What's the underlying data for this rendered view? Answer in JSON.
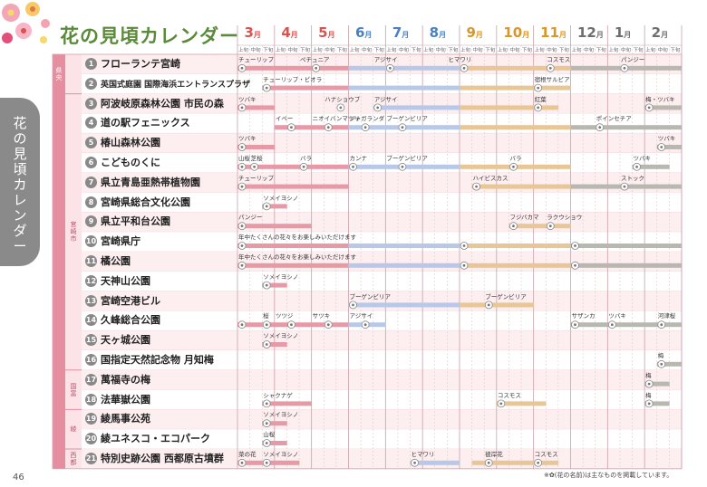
{
  "page": {
    "title": "花の見頃カレンダー",
    "side_tab": "花の見頃カレンダー",
    "page_number": "46",
    "footnote": "※✿(花の名前)は主なものを掲載しています。"
  },
  "months": [
    {
      "n": "3",
      "u": "月",
      "c": "#d9534f"
    },
    {
      "n": "4",
      "u": "月",
      "c": "#d9534f"
    },
    {
      "n": "5",
      "u": "月",
      "c": "#d9534f"
    },
    {
      "n": "6",
      "u": "月",
      "c": "#4a7fc1"
    },
    {
      "n": "7",
      "u": "月",
      "c": "#4a7fc1"
    },
    {
      "n": "8",
      "u": "月",
      "c": "#4a7fc1"
    },
    {
      "n": "9",
      "u": "月",
      "c": "#d9962b"
    },
    {
      "n": "10",
      "u": "月",
      "c": "#d9962b"
    },
    {
      "n": "11",
      "u": "月",
      "c": "#d9962b"
    },
    {
      "n": "12",
      "u": "月",
      "c": "#6e6e6e"
    },
    {
      "n": "1",
      "u": "月",
      "c": "#6e6e6e"
    },
    {
      "n": "2",
      "u": "月",
      "c": "#6e6e6e"
    }
  ],
  "subheads": [
    "上旬",
    "中旬",
    "下旬"
  ],
  "groups": [
    {
      "label": "県央",
      "from": 0,
      "to": 1
    },
    {
      "label": "宮崎市",
      "from": 2,
      "to": 15
    },
    {
      "label": "国富",
      "from": 16,
      "to": 17
    },
    {
      "label": "綾",
      "from": 18,
      "to": 19
    },
    {
      "label": "西都",
      "from": 20,
      "to": 20
    }
  ],
  "bar_colors": {
    "spring": "#e79aa6",
    "summer": "#b8c8e8",
    "autumn": "#e8c695",
    "winter": "#b8b8b0"
  },
  "rows": [
    {
      "num": "1",
      "name": "フローランテ宮崎",
      "bars": [
        [
          0,
          36
        ]
      ],
      "labels": [
        {
          "t": "チューリップ",
          "s": 0
        },
        {
          "t": "ペチュニア",
          "s": 5
        },
        {
          "t": "アジサイ",
          "s": 11
        },
        {
          "t": "ヒマワリ",
          "s": 17
        },
        {
          "t": "コスモス",
          "s": 25
        },
        {
          "t": "パンジー",
          "s": 31
        }
      ],
      "marks": [
        0,
        6,
        12,
        18,
        25,
        31
      ]
    },
    {
      "num": "2",
      "name": "英国式庭園 国際海浜エントランスプラザ",
      "small": true,
      "bars": [
        [
          2,
          27
        ]
      ],
      "labels": [
        {
          "t": "チューリップ・ビオラ",
          "s": 2
        },
        {
          "t": "宿根サルビア",
          "s": 24
        }
      ],
      "marks": [
        2,
        24
      ]
    },
    {
      "num": "3",
      "name": "阿波岐原森林公園 市民の森",
      "bars": [
        [
          0,
          3
        ],
        [
          11,
          26
        ],
        [
          33,
          36
        ]
      ],
      "labels": [
        {
          "t": "ツバキ",
          "s": 0
        },
        {
          "t": "ハナショウブ",
          "s": 7
        },
        {
          "t": "アジサイ",
          "s": 11
        },
        {
          "t": "紅葉",
          "s": 24
        },
        {
          "t": "梅・ツバキ",
          "s": 33
        }
      ],
      "marks": [
        0,
        8,
        11,
        24,
        33
      ]
    },
    {
      "num": "4",
      "name": "道の駅フェニックス",
      "bars": [
        [
          3,
          36
        ]
      ],
      "labels": [
        {
          "t": "イペー",
          "s": 3
        },
        {
          "t": "ニオイバンマツリ",
          "s": 6
        },
        {
          "t": "ジャガランダ",
          "s": 9
        },
        {
          "t": "ブーゲンビリア",
          "s": 12
        },
        {
          "t": "ポインセチア",
          "s": 29
        }
      ],
      "marks": [
        4,
        7,
        10,
        13,
        29
      ]
    },
    {
      "num": "5",
      "name": "椿山森林公園",
      "bars": [
        [
          0,
          3
        ],
        [
          34,
          36
        ]
      ],
      "labels": [
        {
          "t": "ツバキ",
          "s": 0
        },
        {
          "t": "ツバキ",
          "s": 34
        }
      ],
      "marks": [
        0,
        34
      ]
    },
    {
      "num": "6",
      "name": "こどものくに",
      "bars": [
        [
          0,
          27
        ],
        [
          32,
          35
        ]
      ],
      "labels": [
        {
          "t": "山桜",
          "s": 0
        },
        {
          "t": "芝桜",
          "s": 1
        },
        {
          "t": "バラ",
          "s": 5
        },
        {
          "t": "カンナ",
          "s": 9
        },
        {
          "t": "ブーゲンビリア",
          "s": 12
        },
        {
          "t": "バラ",
          "s": 22
        },
        {
          "t": "ツバキ",
          "s": 32
        }
      ],
      "marks": [
        0,
        1,
        5,
        9,
        13,
        22,
        32
      ]
    },
    {
      "num": "7",
      "name": "県立青島亜熱帯植物園",
      "bars": [
        [
          0,
          9
        ],
        [
          19,
          36
        ]
      ],
      "labels": [
        {
          "t": "チューリップ",
          "s": 0
        },
        {
          "t": "ハイビスカス",
          "s": 19
        },
        {
          "t": "ストック",
          "s": 31
        }
      ],
      "marks": [
        0,
        19,
        31
      ]
    },
    {
      "num": "8",
      "name": "宮崎県総合文化公園",
      "bars": [
        [
          2,
          4
        ]
      ],
      "labels": [
        {
          "t": "ソメイヨシノ",
          "s": 2
        }
      ],
      "marks": [
        2
      ]
    },
    {
      "num": "9",
      "name": "県立平和台公園",
      "bars": [
        [
          0,
          6
        ],
        [
          22,
          27
        ]
      ],
      "labels": [
        {
          "t": "パンジー",
          "s": 0
        },
        {
          "t": "フジバカマ",
          "s": 22
        },
        {
          "t": "ラクウショウ",
          "s": 25
        }
      ],
      "marks": [
        0,
        22,
        25
      ]
    },
    {
      "num": "10",
      "name": "宮崎県庁",
      "bars": [
        [
          0,
          36
        ]
      ],
      "labels": [
        {
          "t": "年中たくさんの花々をお楽しみいただけます",
          "s": 0
        }
      ],
      "marks": [
        0,
        18,
        27
      ]
    },
    {
      "num": "11",
      "name": "橘公園",
      "bars": [
        [
          0,
          36
        ]
      ],
      "labels": [
        {
          "t": "年中たくさんの花々をお楽しみいただけます",
          "s": 0
        }
      ],
      "marks": [
        0,
        18,
        27
      ]
    },
    {
      "num": "12",
      "name": "天神山公園",
      "bars": [
        [
          2,
          4
        ]
      ],
      "labels": [
        {
          "t": "ソメイヨシノ",
          "s": 2
        }
      ],
      "marks": [
        2
      ]
    },
    {
      "num": "13",
      "name": "宮崎空港ビル",
      "bars": [
        [
          9,
          24
        ]
      ],
      "labels": [
        {
          "t": "ブーゲンビリア",
          "s": 9
        },
        {
          "t": "ブーゲンビリア",
          "s": 20
        }
      ],
      "marks": [
        9,
        20
      ]
    },
    {
      "num": "14",
      "name": "久峰総合公園",
      "bars": [
        [
          0,
          12
        ],
        [
          27,
          36
        ]
      ],
      "labels": [
        {
          "t": "桜",
          "s": 2
        },
        {
          "t": "ツツジ",
          "s": 3
        },
        {
          "t": "サツキ",
          "s": 6
        },
        {
          "t": "アジサイ",
          "s": 9
        },
        {
          "t": "サザンカ",
          "s": 27
        },
        {
          "t": "ツバキ",
          "s": 30
        },
        {
          "t": "河津桜",
          "s": 34
        }
      ],
      "marks": [
        0,
        2,
        4,
        7,
        10,
        27,
        30,
        34
      ]
    },
    {
      "num": "15",
      "name": "天ヶ城公園",
      "bars": [
        [
          2,
          4
        ]
      ],
      "labels": [
        {
          "t": "ソメイヨシノ",
          "s": 2
        }
      ],
      "marks": [
        2
      ]
    },
    {
      "num": "16",
      "name": "国指定天然記念物 月知梅",
      "bars": [
        [
          34,
          36
        ]
      ],
      "labels": [
        {
          "t": "梅",
          "s": 34
        }
      ],
      "marks": [
        34
      ]
    },
    {
      "num": "17",
      "name": "萬福寺の梅",
      "bars": [
        [
          33,
          35
        ]
      ],
      "labels": [
        {
          "t": "梅",
          "s": 33
        }
      ],
      "marks": [
        33
      ]
    },
    {
      "num": "18",
      "name": "法華嶽公園",
      "bars": [
        [
          2,
          6
        ],
        [
          21,
          25
        ],
        [
          33,
          35
        ]
      ],
      "labels": [
        {
          "t": "シャクナゲ",
          "s": 2
        },
        {
          "t": "コスモス",
          "s": 21
        },
        {
          "t": "梅",
          "s": 33
        }
      ],
      "marks": [
        2,
        21,
        33
      ]
    },
    {
      "num": "19",
      "name": "綾馬事公苑",
      "bars": [
        [
          2,
          4
        ]
      ],
      "labels": [
        {
          "t": "ソメイヨシノ",
          "s": 2
        }
      ],
      "marks": [
        2
      ]
    },
    {
      "num": "20",
      "name": "綾ユネスコ・エコパーク",
      "bars": [
        [
          2,
          4
        ]
      ],
      "labels": [
        {
          "t": "山桜",
          "s": 2
        }
      ],
      "marks": [
        2
      ]
    },
    {
      "num": "21",
      "name": "特別史跡公園 西都原古墳群",
      "bars": [
        [
          0,
          5
        ],
        [
          14,
          18
        ],
        [
          19,
          26
        ]
      ],
      "labels": [
        {
          "t": "菜の花",
          "s": 0
        },
        {
          "t": "ソメイヨシノ",
          "s": 2
        },
        {
          "t": "ヒマワリ",
          "s": 14
        },
        {
          "t": "彼岸花",
          "s": 20
        },
        {
          "t": "コスモス",
          "s": 24
        }
      ],
      "marks": [
        0,
        2,
        14,
        20,
        24
      ]
    }
  ]
}
